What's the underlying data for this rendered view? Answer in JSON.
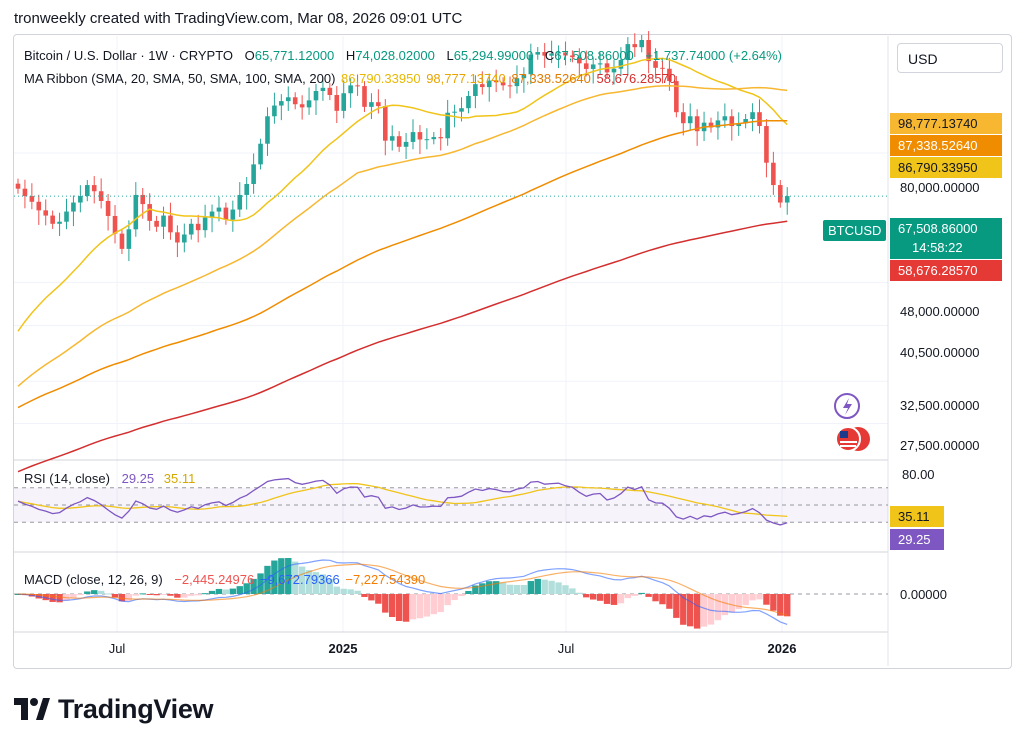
{
  "caption": "tronweekly created with TradingView.com, Mar 08, 2026 09:01 UTC",
  "legend": {
    "symbol": "Bitcoin / U.S. Dollar · 1W · CRYPTO",
    "open_label": "O",
    "open": "65,771.12000",
    "high_label": "H",
    "high": "74,028.02000",
    "low_label": "L",
    "low": "65,294.99000",
    "close_label": "C",
    "close": "67,508.86000",
    "change": "+1,737.74000 (+2.64%)",
    "ma_title": "MA Ribbon (SMA, 20, SMA, 50, SMA, 100, SMA, 200)",
    "ma_values": [
      "86,790.33950",
      "98,777.13740",
      "87,338.52640",
      "58,676.28570"
    ],
    "rsi_title": "RSI (14, close)",
    "rsi_value": "29.25",
    "rsi_ma": "35.11",
    "macd_title": "MACD (close, 12, 26, 9)",
    "macd_values": [
      "−2,445.24976",
      "−9,672.79366",
      "−7,227.54390"
    ]
  },
  "currency_button": "USD",
  "price_tags": {
    "sma50": "98,777.13740",
    "sma100": "87,338.52640",
    "sma20": "86,790.33950",
    "price_label": "BTCUSD",
    "price": "67,508.86000",
    "countdown": "14:58:22",
    "sma200": "58,676.28570",
    "rsi_ma": "35.11",
    "rsi": "29.25",
    "macd_zero": "0.00000",
    "rsi_top": "80.00"
  },
  "price_axis": [
    "80,000.00000",
    "48,000.00000",
    "40,500.00000",
    "32,500.00000",
    "27,500.00000"
  ],
  "time_axis": [
    "Jul",
    "2025",
    "Jul",
    "2026"
  ],
  "brand": "TradingView",
  "colors": {
    "up": "#26a69a",
    "down": "#ef5350",
    "sma20": "#f0c419",
    "sma50": "#f7b731",
    "sma100": "#f08c00",
    "sma200": "#d32f2f",
    "rsi": "#7e57c2",
    "rsi_ma": "#f0c419",
    "macd_up": "#26a69a",
    "macd_up_light": "#b2dfdb",
    "macd_down": "#ef5350",
    "macd_down_light": "#ffcdd2"
  },
  "chart_data": {
    "type": "candlestick",
    "interval": "1W",
    "y_scale": "log",
    "price_range": [
      24000,
      125000
    ],
    "candles_close": [
      69500,
      67500,
      66000,
      63800,
      62500,
      60500,
      61000,
      63500,
      65800,
      67500,
      70500,
      68800,
      66200,
      62400,
      58200,
      54800,
      59200,
      67800,
      65400,
      61200,
      59800,
      62500,
      58500,
      56200,
      58000,
      60500,
      59000,
      62000,
      63500,
      64500,
      61500,
      64000,
      67800,
      70800,
      76500,
      83000,
      92500,
      96500,
      98200,
      99700,
      97000,
      95800,
      98500,
      102200,
      103500,
      100600,
      94500,
      101300,
      104500,
      104200,
      96000,
      97800,
      96300,
      84000,
      85500,
      82000,
      83600,
      86900,
      84400,
      84500,
      85200,
      84800,
      93800,
      94200,
      95500,
      100200,
      105000,
      103800,
      106500,
      105800,
      104500,
      104200,
      107500,
      109200,
      118000,
      119200,
      117500,
      118500,
      119000,
      117600,
      116800,
      114000,
      111500,
      113500,
      114000,
      110000,
      111600,
      115500,
      123000,
      121500,
      125000,
      115000,
      112000,
      111600,
      106300,
      94000,
      90000,
      92500,
      87200,
      90200,
      88500,
      91000,
      92500,
      89000,
      90000,
      91500,
      94000,
      89000,
      77000,
      70500,
      65800,
      67500
    ],
    "sma20_start": 39000,
    "sma200_start": 30000,
    "rsi_range": [
      0,
      100
    ],
    "rsi_last": 29.25,
    "rsi_ma_last": 35.11,
    "macd_last": [
      -2445.24976,
      -9672.79366,
      -7227.5439
    ]
  }
}
